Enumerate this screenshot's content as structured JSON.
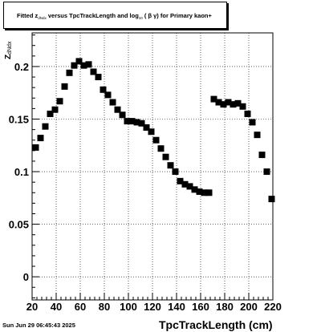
{
  "title": {
    "prefix": "Fitted  z",
    "sub1": "dNdx",
    "middle": "  versus TpcTrackLength and log",
    "sub2": "10",
    "suffix": " ( β γ) for Primary kaon+"
  },
  "footer": {
    "date": "Sun Jun 29 06:45:43 2025"
  },
  "chart_data": {
    "type": "scatter",
    "xlabel": "TpcTrackLength (cm)",
    "ylabel": "Z dNdx",
    "ylabel_main": "Z",
    "ylabel_sub": "dNdx",
    "xlim": [
      20,
      220
    ],
    "ylim": [
      -0.022,
      0.232
    ],
    "x_ticks": [
      20,
      40,
      60,
      80,
      100,
      120,
      140,
      160,
      180,
      200,
      220
    ],
    "y_ticks": [
      0,
      0.05,
      0.1,
      0.15,
      0.2
    ],
    "y_tick_labels": [
      "0",
      "0.05",
      "0.1",
      "0.15",
      "0.2"
    ],
    "grid": true,
    "marker_color": "#000000",
    "series": [
      {
        "x": [
          23,
          27,
          31,
          35,
          39,
          43,
          47,
          51,
          55,
          59,
          63,
          67,
          71,
          75,
          79,
          83,
          87,
          91,
          95,
          99,
          103,
          107,
          111,
          115,
          119,
          123,
          127,
          131,
          135,
          139,
          143,
          147,
          151,
          155,
          159,
          163,
          167,
          171,
          175,
          179,
          183,
          187,
          191,
          195,
          199,
          203,
          207,
          211,
          215,
          219
        ],
        "y": [
          0.123,
          0.132,
          0.143,
          0.155,
          0.159,
          0.167,
          0.181,
          0.194,
          0.201,
          0.205,
          0.201,
          0.202,
          0.195,
          0.19,
          0.178,
          0.173,
          0.166,
          0.159,
          0.154,
          0.148,
          0.148,
          0.147,
          0.146,
          0.142,
          0.138,
          0.13,
          0.122,
          0.114,
          0.106,
          0.1,
          0.091,
          0.088,
          0.086,
          0.083,
          0.081,
          0.08,
          0.08,
          0.169,
          0.166,
          0.164,
          0.166,
          0.164,
          0.165,
          0.162,
          0.155,
          0.147,
          0.135,
          0.116,
          0.1,
          0.074
        ]
      }
    ]
  }
}
